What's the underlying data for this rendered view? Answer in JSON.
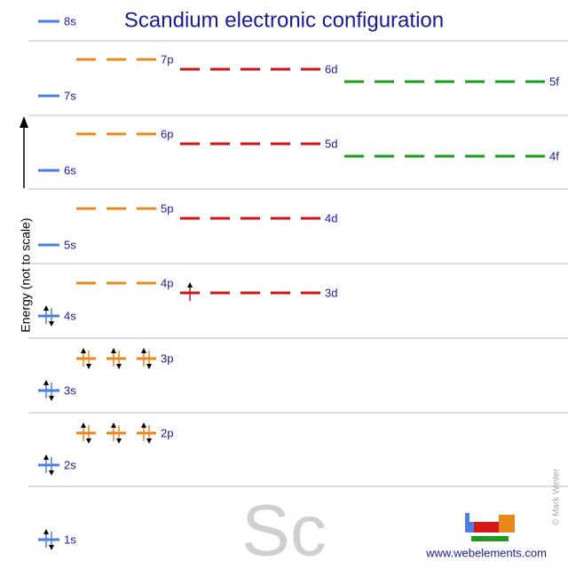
{
  "title": "Scandium electronic configuration",
  "axis_label": "Energy (not to scale)",
  "levels": [
    {
      "label": "1s",
      "electrons": 2
    },
    {
      "label": "2s",
      "electrons": 2
    },
    {
      "label": "2p",
      "electrons": 6
    },
    {
      "label": "3s",
      "electrons": 2
    },
    {
      "label": "3p",
      "electrons": 6
    },
    {
      "label": "4s",
      "electrons": 2
    },
    {
      "label": "3d",
      "electrons": 1
    },
    {
      "label": "4p",
      "electrons": 0
    },
    {
      "label": "5s",
      "electrons": 0
    },
    {
      "label": "4d",
      "electrons": 0
    },
    {
      "label": "5p",
      "electrons": 0
    },
    {
      "label": "6s",
      "electrons": 0
    },
    {
      "label": "4f",
      "electrons": 0
    },
    {
      "label": "5d",
      "electrons": 0
    },
    {
      "label": "6p",
      "electrons": 0
    },
    {
      "label": "7s",
      "electrons": 0
    },
    {
      "label": "5f",
      "electrons": 0
    },
    {
      "label": "6d",
      "electrons": 0
    },
    {
      "label": "7p",
      "electrons": 0
    },
    {
      "label": "8s",
      "electrons": 0
    }
  ],
  "symbol": "Sc",
  "credit": "© Mark Winter",
  "url": "www.webelements.com"
}
